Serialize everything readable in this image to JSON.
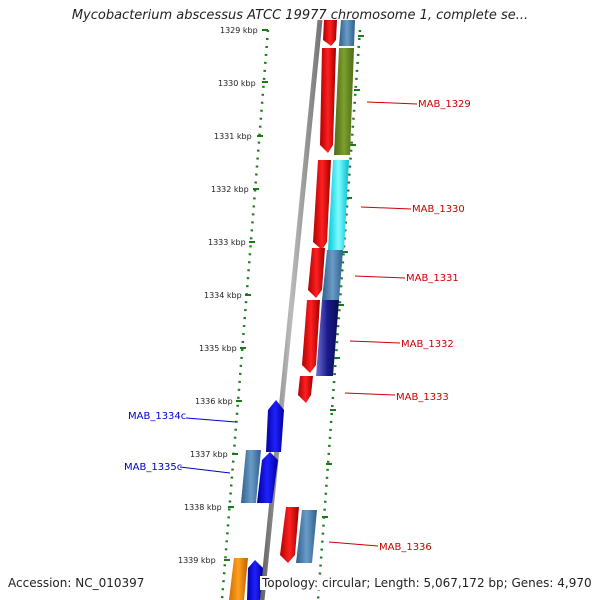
{
  "title": "Mycobacterium abscessus ATCC 19977 chromosome 1, complete se...",
  "footer": {
    "accession": "Accession: NC_010397",
    "stats": "Topology: circular; Length: 5,067,172 bp; Genes: 4,970"
  },
  "ruler": [
    "1329 kbp",
    "1330 kbp",
    "1331 kbp",
    "1332 kbp",
    "1333 kbp",
    "1334 kbp",
    "1335 kbp",
    "1336 kbp",
    "1337 kbp",
    "1338 kbp",
    "1339 kbp"
  ],
  "colors": {
    "forward_label": "#cc0000",
    "reverse_label": "#0000cc",
    "tick": "#1a7a1a",
    "backbone": "#888888"
  },
  "genes": [
    {
      "name": "MAB_1329",
      "strand": "forward",
      "track_color": "#6b8e23"
    },
    {
      "name": "MAB_1330",
      "strand": "forward",
      "track_color": "#00e5ee"
    },
    {
      "name": "MAB_1331",
      "strand": "forward",
      "track_color": "#4682b4"
    },
    {
      "name": "MAB_1332",
      "strand": "forward",
      "track_color": "#1a1a8c"
    },
    {
      "name": "MAB_1333",
      "strand": "forward",
      "track_color": ""
    },
    {
      "name": "MAB_1334c",
      "strand": "reverse",
      "track_color": "#0000ff"
    },
    {
      "name": "MAB_1335c",
      "strand": "reverse",
      "track_color": "#4682b4"
    },
    {
      "name": "MAB_1336",
      "strand": "forward",
      "track_color": "#4682b4"
    }
  ]
}
